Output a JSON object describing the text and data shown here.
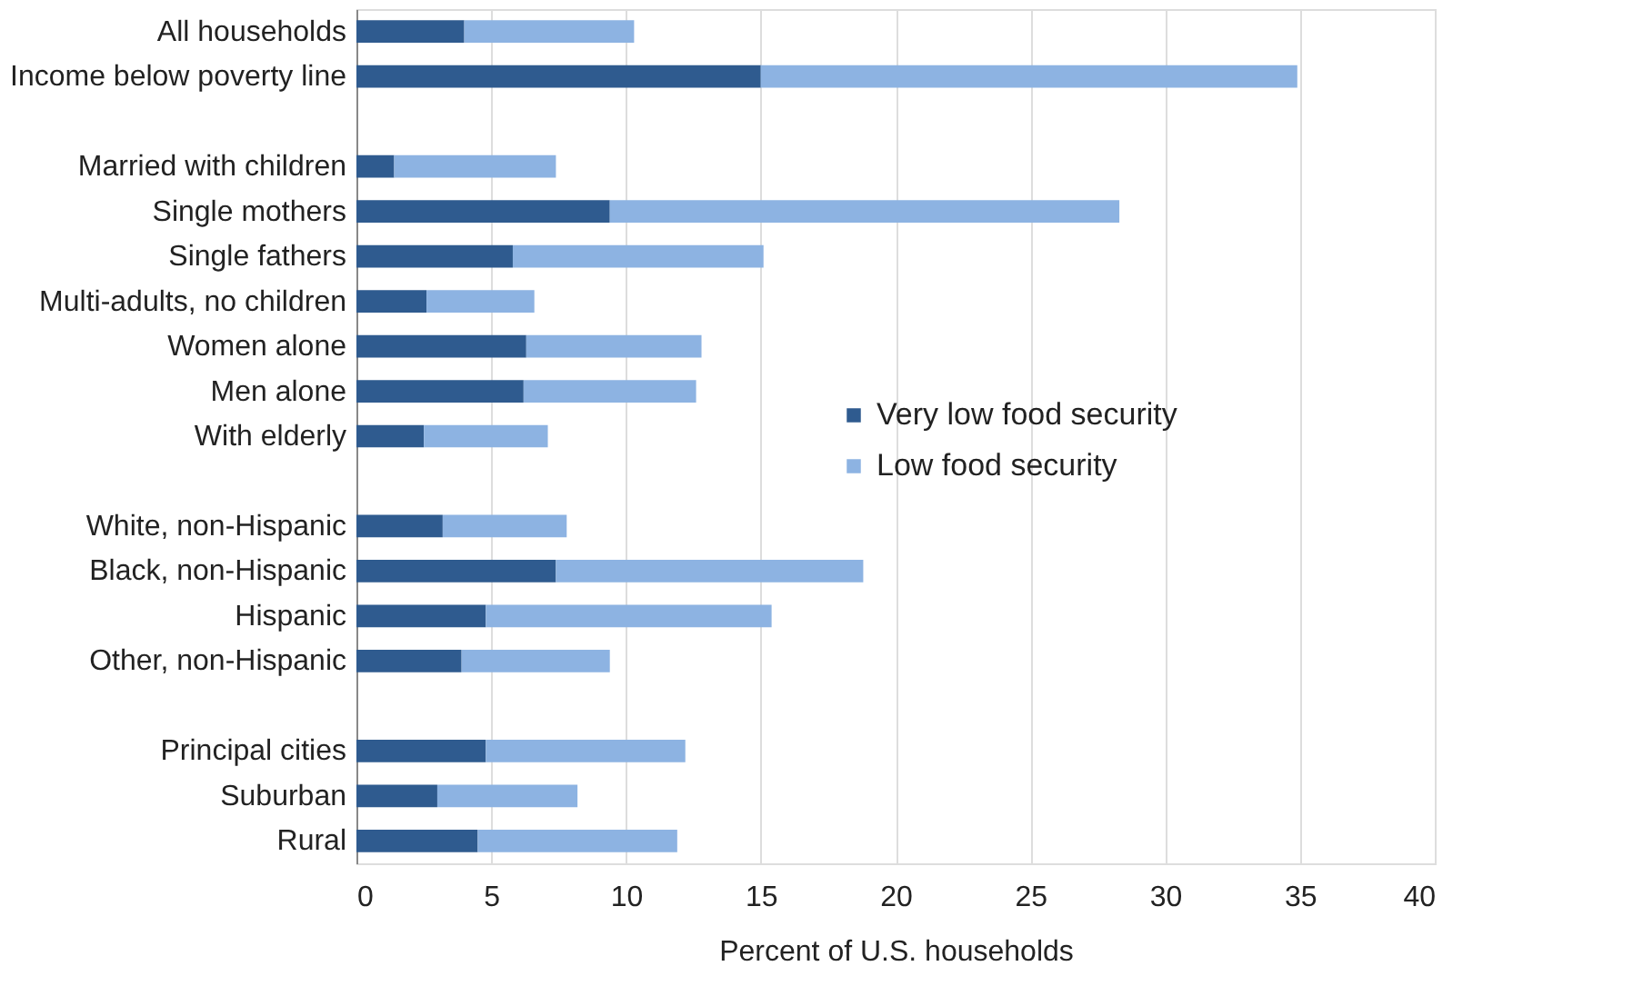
{
  "chart_data": {
    "type": "bar",
    "orientation": "horizontal",
    "stacked": true,
    "xlabel": "Percent of U.S. households",
    "categories": [
      "All households",
      "Income below poverty line",
      null,
      "Married with children",
      "Single mothers",
      "Single fathers",
      "Multi-adults, no children",
      "Women alone",
      "Men alone",
      "With elderly",
      null,
      "White, non-Hispanic",
      "Black, non-Hispanic",
      "Hispanic",
      "Other, non-Hispanic",
      null,
      "Principal cities",
      "Suburban",
      "Rural"
    ],
    "series": [
      {
        "name": "Very low food security",
        "color": "#2f5b8f",
        "values": [
          4.0,
          15.0,
          null,
          1.4,
          9.4,
          5.8,
          2.6,
          6.3,
          6.2,
          2.5,
          null,
          3.2,
          7.4,
          4.8,
          3.9,
          null,
          4.8,
          3.0,
          4.5
        ]
      },
      {
        "name": "Low food security",
        "color": "#8db3e2",
        "values": [
          6.3,
          19.9,
          null,
          6.0,
          18.9,
          9.3,
          4.0,
          6.5,
          6.4,
          4.6,
          null,
          4.6,
          11.4,
          10.6,
          5.5,
          null,
          7.4,
          5.2,
          7.4
        ]
      }
    ],
    "xlim": [
      0,
      40
    ],
    "xticks": [
      0,
      5,
      10,
      15,
      20,
      25,
      30,
      35,
      40
    ],
    "grid": "x",
    "legend": "right"
  }
}
